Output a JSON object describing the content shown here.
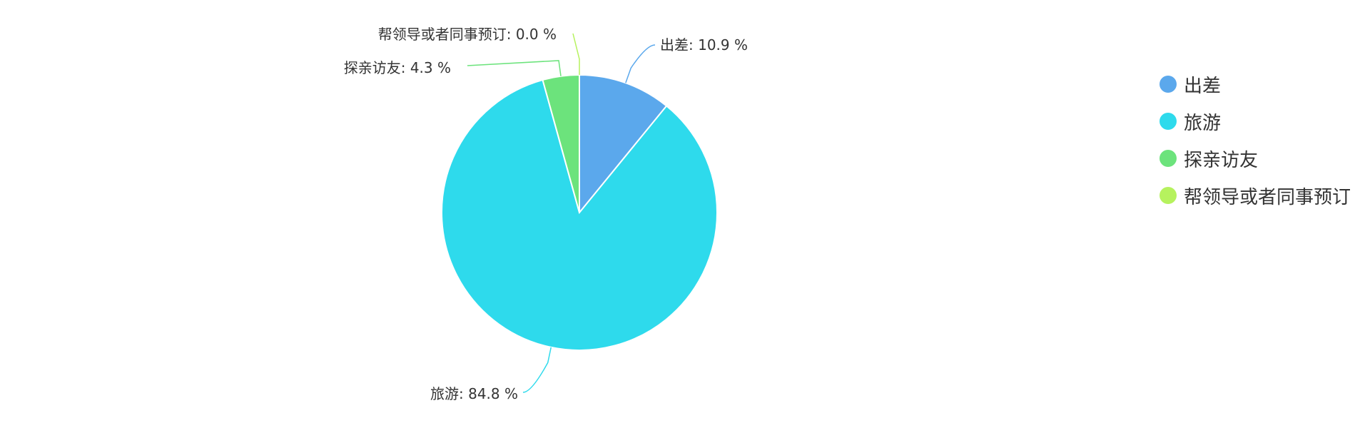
{
  "chart_data": {
    "type": "pie",
    "title": "",
    "categories": [
      "出差",
      "旅游",
      "探亲访友",
      "帮领导或者同事预订"
    ],
    "values": [
      10.9,
      84.8,
      4.3,
      0.0
    ],
    "unit": "%",
    "colors": [
      "#5BA8EC",
      "#2EDAEC",
      "#6CE37C",
      "#B6F25E"
    ],
    "labels": [
      "出差: 10.9 %",
      "旅游: 84.8 %",
      "探亲访友: 4.3 %",
      "帮领导或者同事预订: 0.0 %"
    ],
    "legend": {
      "position": "right",
      "items": [
        "出差",
        "旅游",
        "探亲访友",
        "帮领导或者同事预订"
      ]
    }
  }
}
